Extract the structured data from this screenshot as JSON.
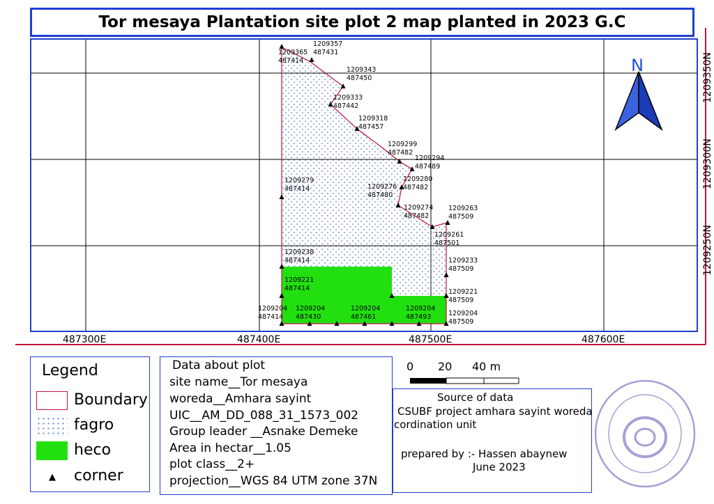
{
  "title": "Tor mesaya Plantation site plot 2 map planted in 2023 G.C",
  "north_arrow": {
    "label": "N",
    "icon": "north-arrow-icon",
    "color": "#1f4fd8"
  },
  "axes": {
    "x_ticks": [
      "487300E",
      "487400E",
      "487500E",
      "487600E"
    ],
    "y_ticks": [
      "1209350N",
      "1209300N",
      "1209250N"
    ]
  },
  "points": [
    {
      "label": "1209357\n487431"
    },
    {
      "label": "1209365\n487414"
    },
    {
      "label": "1209343\n487450"
    },
    {
      "label": "1209333\n487442"
    },
    {
      "label": "1209318\n487457"
    },
    {
      "label": "1209299\n487482"
    },
    {
      "label": "1209294\n487489"
    },
    {
      "label": "1209280\n487482"
    },
    {
      "label": "1209276\n487480"
    },
    {
      "label": "1209279\n487414"
    },
    {
      "label": "1209274\n487482"
    },
    {
      "label": "1209263\n487509"
    },
    {
      "label": "1209261\n487501"
    },
    {
      "label": "1209238\n487414"
    },
    {
      "label": "1209233\n487509"
    },
    {
      "label": "1209221\n487414"
    },
    {
      "label": "1209221\n487509"
    },
    {
      "label": "1209204\n487414"
    },
    {
      "label": "1209204\n487430"
    },
    {
      "label": "1209204\n487461"
    },
    {
      "label": "1209204\n487493"
    },
    {
      "label": "1209204\n487509"
    }
  ],
  "legend": {
    "title": "Legend",
    "items": [
      {
        "label": "Boundary",
        "color": "#c0143c"
      },
      {
        "label": "fagro",
        "color": "#5a7fd0"
      },
      {
        "label": "heco",
        "color": "#22e010"
      },
      {
        "label": "corner",
        "icon": "triangle-icon"
      }
    ]
  },
  "plot_info": {
    "heading": "Data about plot",
    "lines": [
      "site name__Tor mesaya",
      "woreda__Amhara sayint",
      "UIC__AM_DD_088_31_1573_002",
      "Group leader __Asnake Demeke",
      "Area in hectar__1.05",
      "plot class__2+",
      "projection__WGS 84 UTM zone 37N"
    ]
  },
  "scale_bar": {
    "labels": [
      "0",
      "20",
      "40 m"
    ]
  },
  "source": {
    "heading": "Source of data",
    "lines": [
      "CSUBF project amhara sayint woreda",
      "cordination unit"
    ],
    "prepared_by": "prepared by :- Hassen abaynew",
    "date": "June 2023"
  }
}
